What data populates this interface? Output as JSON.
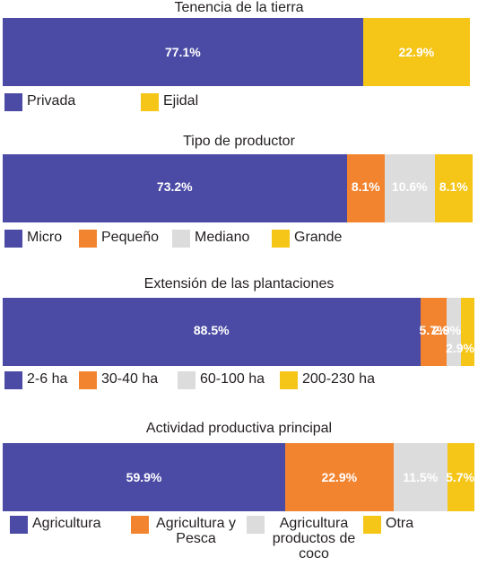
{
  "colors": {
    "blue": "#4b4ba6",
    "orange": "#f28430",
    "gray": "#dcdcdc",
    "yellow": "#f5c518"
  },
  "chart_data": [
    {
      "type": "stacked-bar",
      "title": "Tenencia de la tierra",
      "series": [
        {
          "name": "Privada",
          "value": 77.1,
          "label": "77.1%",
          "color": "blue"
        },
        {
          "name": "Ejidal",
          "value": 22.9,
          "label": "22.9%",
          "color": "yellow"
        }
      ]
    },
    {
      "type": "stacked-bar",
      "title": "Tipo de productor",
      "series": [
        {
          "name": "Micro",
          "value": 73.2,
          "label": "73.2%",
          "color": "blue"
        },
        {
          "name": "Pequeño",
          "value": 8.1,
          "label": "8.1%",
          "color": "orange"
        },
        {
          "name": "Mediano",
          "value": 10.6,
          "label": "10.6%",
          "color": "gray"
        },
        {
          "name": "Grande",
          "value": 8.1,
          "label": "8.1%",
          "color": "yellow"
        }
      ]
    },
    {
      "type": "stacked-bar",
      "title": "Extensión de las plantaciones",
      "series": [
        {
          "name": "2-6 ha",
          "value": 88.5,
          "label": "88.5%",
          "color": "blue"
        },
        {
          "name": "30-40 ha",
          "value": 5.7,
          "label": "5.7%",
          "color": "orange"
        },
        {
          "name": "60-100 ha",
          "value": 2.9,
          "label": "2.9%",
          "color": "gray"
        },
        {
          "name": "200-230 ha",
          "value": 2.9,
          "label": "2.9%",
          "color": "yellow"
        }
      ]
    },
    {
      "type": "stacked-bar",
      "title": "Actividad productiva principal",
      "series": [
        {
          "name": "Agricultura",
          "value": 59.9,
          "label": "59.9%",
          "color": "blue"
        },
        {
          "name": "Agricultura y Pesca",
          "value": 22.9,
          "label": "22.9%",
          "color": "orange"
        },
        {
          "name": "Agricultura productos de coco",
          "value": 11.5,
          "label": "11.5%",
          "color": "gray"
        },
        {
          "name": "Otra",
          "value": 5.7,
          "label": "5.7%",
          "color": "yellow"
        }
      ]
    }
  ]
}
